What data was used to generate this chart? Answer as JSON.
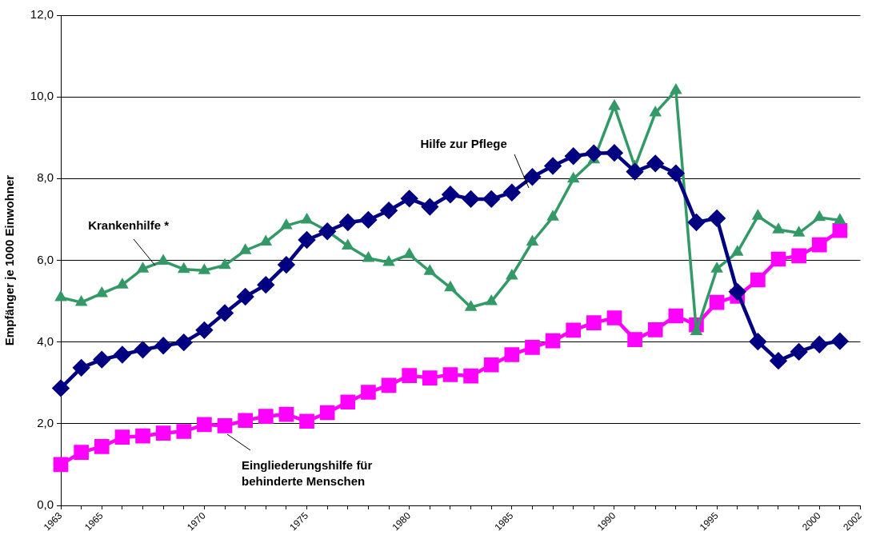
{
  "chart_data": {
    "type": "line",
    "ylabel": "Empfänger je 1000 Einwohner",
    "categories": [
      "1963",
      null,
      "1965",
      null,
      null,
      null,
      null,
      "1970",
      null,
      null,
      null,
      null,
      "1975",
      null,
      null,
      null,
      null,
      "1980",
      null,
      null,
      null,
      null,
      "1985",
      null,
      null,
      null,
      null,
      "1990",
      null,
      null,
      null,
      null,
      "1995",
      null,
      null,
      null,
      null,
      "2000",
      null,
      "2002"
    ],
    "series": [
      {
        "name": "Hilfe zur Pflege",
        "color": "#000080",
        "marker": "diamond",
        "values": [
          2.87,
          3.37,
          3.57,
          3.69,
          3.81,
          3.91,
          3.99,
          4.29,
          4.71,
          5.11,
          5.4,
          5.89,
          6.5,
          6.71,
          6.93,
          6.99,
          7.22,
          7.51,
          7.31,
          7.61,
          7.5,
          7.5,
          7.66,
          8.04,
          8.31,
          8.55,
          8.62,
          8.63,
          8.17,
          8.37,
          8.13,
          6.93,
          7.03,
          5.23,
          4.01,
          3.54,
          3.76,
          3.94,
          4.02,
          null
        ]
      },
      {
        "name": "Krankenhilfe *",
        "color": "#339966",
        "marker": "triangle",
        "values": [
          5.09,
          4.97,
          5.19,
          5.4,
          5.79,
          5.98,
          5.78,
          5.75,
          5.88,
          6.24,
          6.45,
          6.85,
          6.99,
          6.72,
          6.35,
          6.05,
          5.95,
          6.14,
          5.73,
          5.33,
          4.85,
          4.99,
          5.62,
          6.45,
          7.06,
          7.99,
          8.46,
          9.77,
          8.29,
          9.61,
          10.16,
          4.26,
          5.79,
          6.2,
          7.08,
          6.75,
          6.67,
          7.05,
          6.98,
          null
        ]
      },
      {
        "name": "Eingliederungshilfe für behinderte Menschen",
        "color": "#ff00ff",
        "marker": "square",
        "values": [
          1.0,
          1.3,
          1.44,
          1.67,
          1.7,
          1.77,
          1.81,
          1.98,
          1.95,
          2.08,
          2.18,
          2.23,
          2.06,
          2.27,
          2.53,
          2.77,
          2.94,
          3.18,
          3.12,
          3.2,
          3.17,
          3.44,
          3.69,
          3.87,
          4.03,
          4.29,
          4.47,
          4.59,
          4.06,
          4.3,
          4.64,
          4.42,
          4.97,
          5.12,
          5.52,
          6.03,
          6.11,
          6.38,
          6.73,
          null
        ]
      }
    ],
    "ylim": [
      0,
      12
    ],
    "yticks": [
      {
        "value": 0,
        "label": "0,0"
      },
      {
        "value": 2,
        "label": "2,0"
      },
      {
        "value": 4,
        "label": "4,0"
      },
      {
        "value": 6,
        "label": "6,0"
      },
      {
        "value": 8,
        "label": "8,0"
      },
      {
        "value": 10,
        "label": "10,0"
      },
      {
        "value": 12,
        "label": "12,0"
      }
    ],
    "grid": "y"
  }
}
